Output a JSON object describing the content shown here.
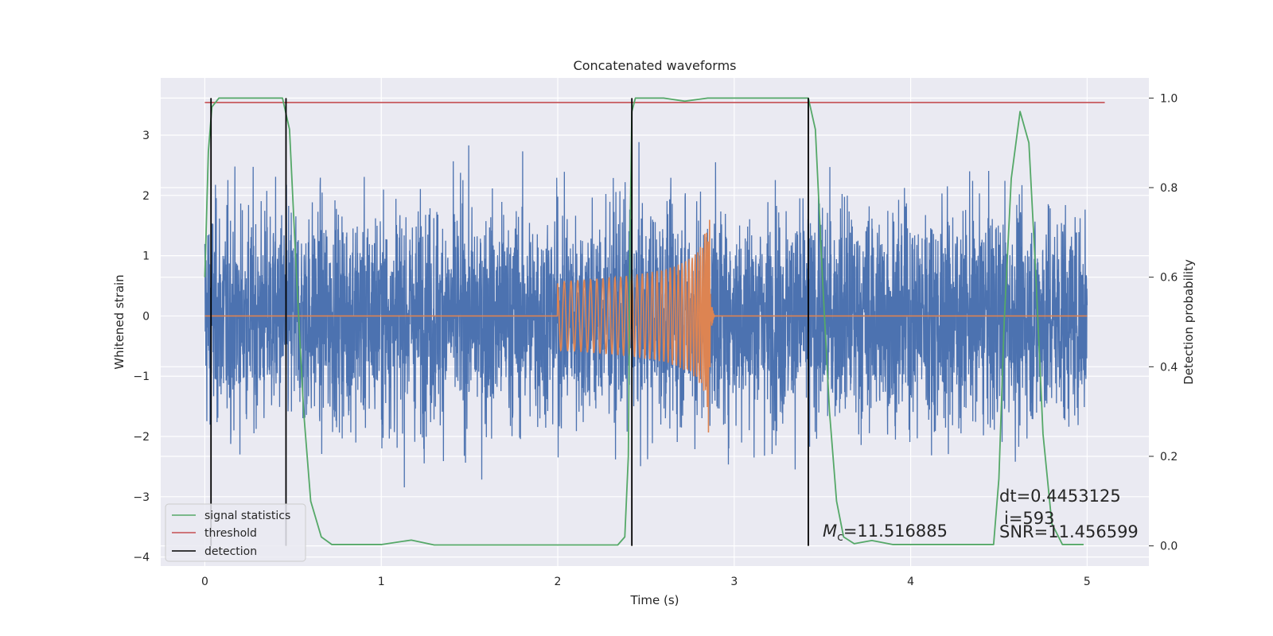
{
  "chart_data": {
    "type": "line",
    "title": "Concatenated waveforms",
    "xlabel": "Time (s)",
    "ylabel": "Whitened strain",
    "ylabel_right": "Detection probability",
    "xlim": [
      -0.25,
      5.35
    ],
    "ylim": [
      -4.15,
      3.95
    ],
    "ylim_right": [
      -0.045,
      1.045
    ],
    "x_ticks": [
      0,
      1,
      2,
      3,
      4,
      5
    ],
    "y_ticks": [
      -4,
      -3,
      -2,
      -1,
      0,
      1,
      2,
      3
    ],
    "y_right_ticks": [
      0.0,
      0.2,
      0.4,
      0.6,
      0.8,
      1.0
    ],
    "x_tick_labels": [
      "0",
      "1",
      "2",
      "3",
      "4",
      "5"
    ],
    "y_tick_labels": [
      "−4",
      "−3",
      "−2",
      "−1",
      "0",
      "1",
      "2",
      "3"
    ],
    "y_right_tick_labels": [
      "0.0",
      "0.2",
      "0.4",
      "0.6",
      "0.8",
      "1.0"
    ],
    "grid": true,
    "legend_placement": "bottom-left",
    "colors": {
      "strain": "#4c72b0",
      "injection": "#dd8452",
      "signal_statistics": "#55a868",
      "threshold": "#c44e52",
      "detection": "#000000",
      "plot_bg": "#eaeaf2",
      "grid": "#ffffff"
    },
    "series": [
      {
        "name": "signal statistics",
        "axis": "right",
        "points": [
          [
            0.0,
            0.6
          ],
          [
            0.02,
            0.88
          ],
          [
            0.04,
            0.98
          ],
          [
            0.08,
            1.0
          ],
          [
            0.44,
            1.0
          ],
          [
            0.48,
            0.93
          ],
          [
            0.52,
            0.6
          ],
          [
            0.56,
            0.3
          ],
          [
            0.6,
            0.1
          ],
          [
            0.66,
            0.02
          ],
          [
            0.72,
            0.003
          ],
          [
            1.0,
            0.003
          ],
          [
            1.17,
            0.013
          ],
          [
            1.3,
            0.002
          ],
          [
            2.34,
            0.002
          ],
          [
            2.38,
            0.02
          ],
          [
            2.4,
            0.2
          ],
          [
            2.41,
            0.7
          ],
          [
            2.42,
            0.97
          ],
          [
            2.44,
            1.0
          ],
          [
            2.6,
            1.0
          ],
          [
            2.72,
            0.993
          ],
          [
            2.85,
            1.0
          ],
          [
            3.42,
            1.0
          ],
          [
            3.46,
            0.93
          ],
          [
            3.5,
            0.6
          ],
          [
            3.54,
            0.3
          ],
          [
            3.58,
            0.1
          ],
          [
            3.62,
            0.02
          ],
          [
            3.68,
            0.005
          ],
          [
            3.78,
            0.012
          ],
          [
            3.9,
            0.003
          ],
          [
            4.47,
            0.003
          ],
          [
            4.5,
            0.15
          ],
          [
            4.53,
            0.5
          ],
          [
            4.57,
            0.82
          ],
          [
            4.62,
            0.97
          ],
          [
            4.67,
            0.9
          ],
          [
            4.71,
            0.6
          ],
          [
            4.75,
            0.25
          ],
          [
            4.8,
            0.05
          ],
          [
            4.86,
            0.003
          ],
          [
            4.98,
            0.003
          ]
        ]
      },
      {
        "name": "threshold",
        "axis": "right",
        "value": 0.99,
        "x_range": [
          0.0,
          5.1
        ]
      },
      {
        "name": "detection",
        "x": [
          0.035,
          0.46,
          2.42,
          3.42
        ],
        "right_range": [
          0.0,
          1.0
        ]
      },
      {
        "name": "whitened strain",
        "axis": "left",
        "x_range": [
          0.0,
          5.0
        ],
        "amplitude_sigma": 0.9,
        "peak_range": [
          -3.8,
          3.6
        ]
      },
      {
        "name": "injected waveform",
        "axis": "left",
        "x_range": [
          2.0,
          3.0
        ],
        "merger_time": 2.86,
        "peak_amplitude": 2.2
      }
    ],
    "annotations": {
      "mc_symbol": "M",
      "mc_subscript": "c",
      "mc_value": "=11.516885",
      "dt": "dt=0.4453125",
      "i": "i=593",
      "snr": "SNR=11.456599"
    }
  }
}
